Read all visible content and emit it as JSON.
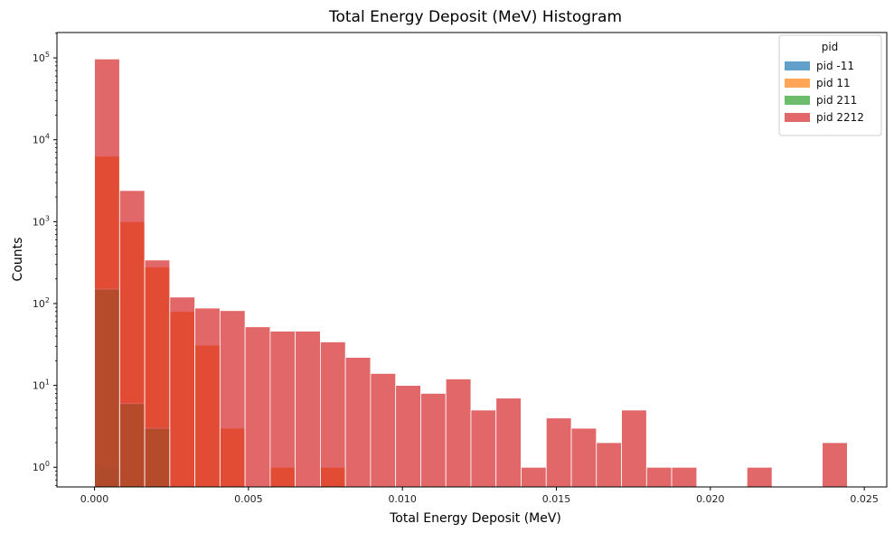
{
  "chart_data": {
    "type": "bar",
    "subtype": "overlaid-histogram",
    "title": "Total Energy Deposit (MeV) Histogram",
    "xlabel": "Total Energy Deposit (MeV)",
    "ylabel": "Counts",
    "yscale": "log",
    "xlim": [
      -0.00122,
      0.02573
    ],
    "ylim_exponent": [
      -0.24,
      5.31
    ],
    "bin_width": 0.000815,
    "bin_starts": [
      0.0,
      0.000815,
      0.00163,
      0.002445,
      0.00326,
      0.004075,
      0.00489,
      0.005705,
      0.00652,
      0.007335,
      0.00815,
      0.008965,
      0.00978,
      0.010595,
      0.01141,
      0.012225,
      0.01304,
      0.013855,
      0.01467,
      0.015485,
      0.0163,
      0.017115,
      0.01793,
      0.018745,
      0.01956,
      0.020375,
      0.02119,
      0.022005,
      0.02282,
      0.023635
    ],
    "x_ticks": [
      "0.000",
      "0.005",
      "0.010",
      "0.015",
      "0.020",
      "0.025"
    ],
    "x_tick_values": [
      0.0,
      0.005,
      0.01,
      0.015,
      0.02,
      0.025
    ],
    "y_ticks": [
      {
        "base": "10",
        "exp": "0",
        "value": 0
      },
      {
        "base": "10",
        "exp": "1",
        "value": 1
      },
      {
        "base": "10",
        "exp": "2",
        "value": 2
      },
      {
        "base": "10",
        "exp": "3",
        "value": 3
      },
      {
        "base": "10",
        "exp": "4",
        "value": 4
      },
      {
        "base": "10",
        "exp": "5",
        "value": 5
      }
    ],
    "legend": {
      "title": "pid",
      "position": "top-right"
    },
    "grid": false,
    "series": [
      {
        "name": "pid -11",
        "color": "#1f77b4",
        "values": [
          1,
          0,
          0,
          0,
          0,
          0,
          0,
          0,
          0,
          0,
          0,
          0,
          0,
          0,
          0,
          0,
          0,
          0,
          0,
          0,
          0,
          0,
          0,
          0,
          0,
          0,
          0,
          0,
          0,
          0
        ]
      },
      {
        "name": "pid 11",
        "color": "#ff7f0e",
        "values": [
          6300,
          1000,
          280,
          80,
          31,
          3,
          0,
          1,
          0,
          1,
          0,
          0,
          0,
          0,
          0,
          0,
          0,
          0,
          0,
          0,
          0,
          0,
          0,
          0,
          0,
          0,
          0,
          0,
          0,
          0
        ]
      },
      {
        "name": "pid 211",
        "color": "#2ca02c",
        "values": [
          150,
          6,
          3,
          0,
          0,
          0,
          0,
          0,
          0,
          0,
          0,
          0,
          0,
          0,
          0,
          0,
          0,
          0,
          0,
          0,
          0,
          0,
          0,
          0,
          0,
          0,
          0,
          0,
          0,
          0
        ]
      },
      {
        "name": "pid 2212",
        "color": "#d62728",
        "values": [
          97000,
          2400,
          340,
          120,
          88,
          82,
          52,
          46,
          46,
          34,
          22,
          14,
          10,
          8,
          12,
          5,
          7,
          1,
          4,
          3,
          2,
          5,
          1,
          1,
          0,
          0,
          1,
          0,
          0,
          2
        ]
      }
    ]
  }
}
